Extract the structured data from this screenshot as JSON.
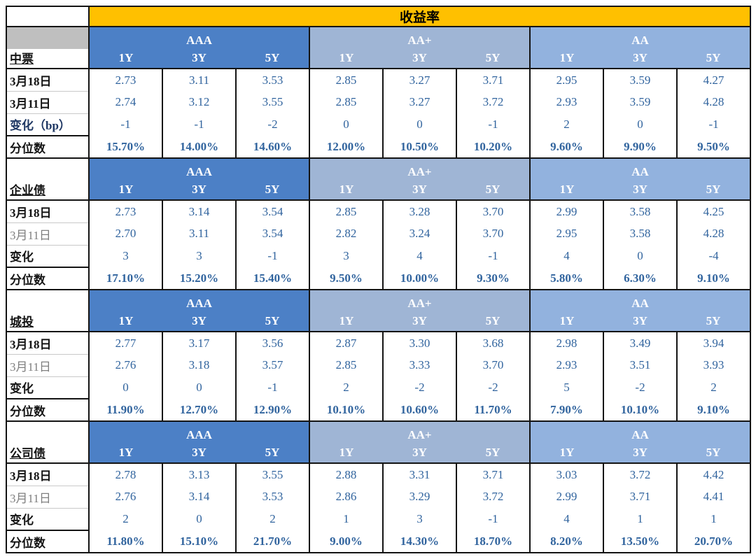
{
  "colors": {
    "yellow": "#FFC000",
    "aaa": "#4C80C6",
    "aaplus": "#9FB5D5",
    "aa": "#92B2DE",
    "gray": "#BFBFBF",
    "value_text": "#31649E",
    "muted_label": "#7F7F7F",
    "navy_label": "#1F3864"
  },
  "chart_data": {
    "type": "table",
    "title": "收益率",
    "ratings": [
      "AAA",
      "AA+",
      "AA"
    ],
    "tenors": [
      "1Y",
      "3Y",
      "5Y"
    ],
    "sections": [
      {
        "name": "中票",
        "gray_cap": true,
        "rows": [
          {
            "label": "3月18日",
            "label_style": "bold",
            "values": [
              "2.73",
              "3.11",
              "3.53",
              "2.85",
              "3.27",
              "3.71",
              "2.95",
              "3.59",
              "4.27"
            ]
          },
          {
            "label": "3月11日",
            "label_style": "bold",
            "values": [
              "2.74",
              "3.12",
              "3.55",
              "2.85",
              "3.27",
              "3.72",
              "2.93",
              "3.59",
              "4.28"
            ]
          },
          {
            "label": "变化（bp）",
            "label_style": "navy",
            "values": [
              "-1",
              "-1",
              "-2",
              "0",
              "0",
              "-1",
              "2",
              "0",
              "-1"
            ]
          },
          {
            "label": "分位数",
            "label_style": "bold",
            "values": [
              "15.70%",
              "14.00%",
              "14.60%",
              "12.00%",
              "10.50%",
              "10.20%",
              "9.60%",
              "9.90%",
              "9.50%"
            ]
          }
        ]
      },
      {
        "name": "企业债",
        "gray_cap": false,
        "rows": [
          {
            "label": "3月18日",
            "label_style": "bold",
            "values": [
              "2.73",
              "3.14",
              "3.54",
              "2.85",
              "3.28",
              "3.70",
              "2.99",
              "3.58",
              "4.25"
            ]
          },
          {
            "label": "3月11日",
            "label_style": "muted",
            "values": [
              "2.70",
              "3.11",
              "3.54",
              "2.82",
              "3.24",
              "3.70",
              "2.95",
              "3.58",
              "4.28"
            ]
          },
          {
            "label": "变化",
            "label_style": "bold",
            "values": [
              "3",
              "3",
              "-1",
              "3",
              "4",
              "-1",
              "4",
              "0",
              "-4"
            ]
          },
          {
            "label": "分位数",
            "label_style": "bold",
            "values": [
              "17.10%",
              "15.20%",
              "15.40%",
              "9.50%",
              "10.00%",
              "9.30%",
              "5.80%",
              "6.30%",
              "9.10%"
            ]
          }
        ]
      },
      {
        "name": "城投",
        "gray_cap": false,
        "rows": [
          {
            "label": "3月18日",
            "label_style": "bold",
            "values": [
              "2.77",
              "3.17",
              "3.56",
              "2.87",
              "3.30",
              "3.68",
              "2.98",
              "3.49",
              "3.94"
            ]
          },
          {
            "label": "3月11日",
            "label_style": "muted",
            "values": [
              "2.76",
              "3.18",
              "3.57",
              "2.85",
              "3.33",
              "3.70",
              "2.93",
              "3.51",
              "3.93"
            ]
          },
          {
            "label": "变化",
            "label_style": "bold",
            "values": [
              "0",
              "0",
              "-1",
              "2",
              "-2",
              "-2",
              "5",
              "-2",
              "2"
            ]
          },
          {
            "label": "分位数",
            "label_style": "bold",
            "values": [
              "11.90%",
              "12.70%",
              "12.90%",
              "10.10%",
              "10.60%",
              "11.70%",
              "7.90%",
              "10.10%",
              "9.10%"
            ]
          }
        ]
      },
      {
        "name": "公司债",
        "gray_cap": false,
        "rows": [
          {
            "label": "3月18日",
            "label_style": "bold",
            "values": [
              "2.78",
              "3.13",
              "3.55",
              "2.88",
              "3.31",
              "3.71",
              "3.03",
              "3.72",
              "4.42"
            ]
          },
          {
            "label": "3月11日",
            "label_style": "muted",
            "values": [
              "2.76",
              "3.14",
              "3.53",
              "2.86",
              "3.29",
              "3.72",
              "2.99",
              "3.71",
              "4.41"
            ]
          },
          {
            "label": "变化",
            "label_style": "bold",
            "values": [
              "2",
              "0",
              "2",
              "1",
              "3",
              "-1",
              "4",
              "1",
              "1"
            ]
          },
          {
            "label": "分位数",
            "label_style": "bold",
            "values": [
              "11.80%",
              "15.10%",
              "21.70%",
              "9.00%",
              "14.30%",
              "18.70%",
              "8.20%",
              "13.50%",
              "20.70%"
            ]
          }
        ]
      }
    ]
  }
}
